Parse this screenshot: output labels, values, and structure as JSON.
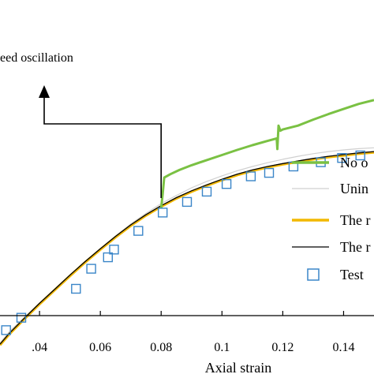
{
  "chart_data": {
    "type": "line",
    "title": "",
    "xlabel": "Axial strain",
    "ylabel": "",
    "xlim": [
      0.027,
      0.15
    ],
    "ylim": [
      0,
      1
    ],
    "x_ticks": [
      0.04,
      0.06,
      0.08,
      0.1,
      0.12,
      0.14
    ],
    "x_tick_labels": [
      ".04",
      "0.06",
      "0.08",
      "0.1",
      "0.12",
      "0.14"
    ],
    "grid": false,
    "legend_position": "right",
    "annotation": {
      "text": "eed oscillation",
      "arrow_target": [
        0.08,
        0.17
      ]
    },
    "series": [
      {
        "name": "No o",
        "color": "#7ac143",
        "kind": "line",
        "x": [
          0.08,
          0.0805,
          0.081,
          0.083,
          0.086,
          0.09,
          0.095,
          0.1,
          0.105,
          0.11,
          0.115,
          0.118,
          0.1182,
          0.1186,
          0.1192,
          0.12,
          0.125,
          0.13,
          0.135,
          0.14,
          0.145,
          0.15
        ],
        "y": [
          0.625,
          0.66,
          0.698,
          0.706,
          0.716,
          0.727,
          0.739,
          0.751,
          0.763,
          0.774,
          0.784,
          0.79,
          0.765,
          0.82,
          0.808,
          0.811,
          0.82,
          0.834,
          0.847,
          0.859,
          0.871,
          0.88
        ]
      },
      {
        "name": "Unin",
        "color": "#d0d0d0",
        "kind": "line",
        "x": [
          0.027,
          0.03,
          0.035,
          0.04,
          0.045,
          0.05,
          0.055,
          0.06,
          0.065,
          0.07,
          0.075,
          0.08,
          0.085,
          0.09,
          0.095,
          0.1,
          0.105,
          0.11,
          0.115,
          0.12,
          0.125,
          0.13,
          0.135,
          0.14,
          0.145,
          0.15
        ],
        "y": [
          0.31,
          0.336,
          0.37,
          0.404,
          0.437,
          0.47,
          0.501,
          0.532,
          0.561,
          0.589,
          0.614,
          0.637,
          0.656,
          0.674,
          0.689,
          0.702,
          0.714,
          0.724,
          0.733,
          0.741,
          0.748,
          0.754,
          0.759,
          0.763,
          0.766,
          0.768
        ]
      },
      {
        "name": "The r",
        "color": "#f2b800",
        "kind": "line",
        "x": [
          0.027,
          0.03,
          0.035,
          0.04,
          0.045,
          0.05,
          0.055,
          0.06,
          0.065,
          0.07,
          0.075,
          0.08,
          0.085,
          0.09,
          0.095,
          0.1,
          0.105,
          0.11,
          0.115,
          0.12,
          0.125,
          0.13,
          0.135,
          0.14,
          0.145,
          0.15
        ],
        "y": [
          0.305,
          0.33,
          0.366,
          0.401,
          0.434,
          0.467,
          0.499,
          0.529,
          0.558,
          0.585,
          0.609,
          0.63,
          0.649,
          0.665,
          0.679,
          0.692,
          0.704,
          0.714,
          0.722,
          0.729,
          0.735,
          0.741,
          0.746,
          0.75,
          0.754,
          0.757
        ]
      },
      {
        "name": "The r",
        "color": "#000000",
        "kind": "line",
        "x": [
          0.027,
          0.03,
          0.035,
          0.04,
          0.045,
          0.05,
          0.055,
          0.06,
          0.065,
          0.07,
          0.075,
          0.08,
          0.085,
          0.09,
          0.095,
          0.1,
          0.105,
          0.11,
          0.115,
          0.12,
          0.125,
          0.13,
          0.135,
          0.14,
          0.145,
          0.15
        ],
        "y": [
          0.307,
          0.332,
          0.368,
          0.403,
          0.436,
          0.469,
          0.501,
          0.531,
          0.56,
          0.587,
          0.611,
          0.632,
          0.651,
          0.667,
          0.681,
          0.694,
          0.706,
          0.716,
          0.724,
          0.731,
          0.737,
          0.743,
          0.748,
          0.752,
          0.756,
          0.759
        ]
      },
      {
        "name": "Test",
        "color": "#3a86c8",
        "kind": "scatter",
        "x": [
          0.029,
          0.034,
          0.052,
          0.057,
          0.0625,
          0.0645,
          0.0725,
          0.0805,
          0.0885,
          0.095,
          0.1015,
          0.1095,
          0.1155,
          0.1235,
          0.1325,
          0.1395,
          0.1455
        ],
        "y": [
          0.34,
          0.369,
          0.437,
          0.484,
          0.511,
          0.529,
          0.573,
          0.616,
          0.641,
          0.665,
          0.683,
          0.701,
          0.709,
          0.724,
          0.734,
          0.744,
          0.75
        ]
      }
    ]
  }
}
